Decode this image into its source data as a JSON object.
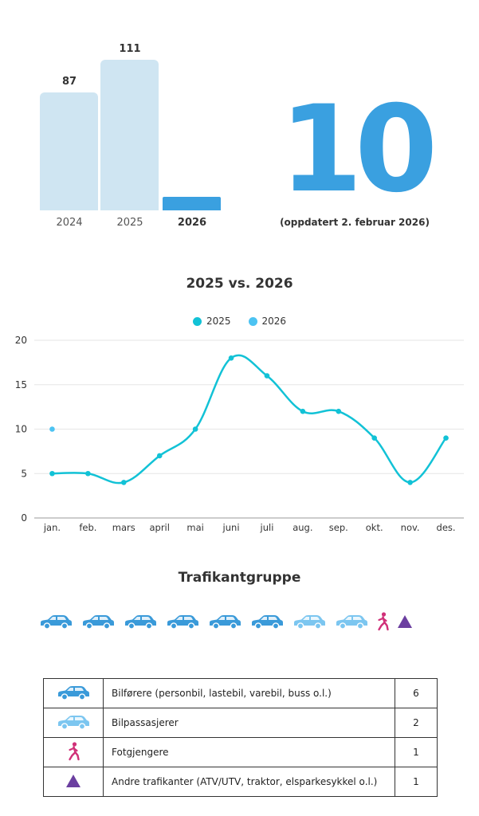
{
  "summary": {
    "bars": [
      {
        "label": "2024",
        "value": 87,
        "color": "#cfe5f2"
      },
      {
        "label": "2025",
        "value": 111,
        "color": "#cfe5f2"
      },
      {
        "label": "2026",
        "value": 10,
        "color": "#3aa0e0"
      }
    ],
    "current_count": "10",
    "updated_text": "(oppdatert 2. februar 2026)"
  },
  "chart_data": {
    "type": "line",
    "title": "2025 vs. 2026",
    "categories": [
      "jan.",
      "feb.",
      "mars",
      "april",
      "mai",
      "juni",
      "juli",
      "aug.",
      "sep.",
      "okt.",
      "nov.",
      "des."
    ],
    "series": [
      {
        "name": "2025",
        "color": "#12c2d6",
        "values": [
          5,
          5,
          4,
          7,
          10,
          18,
          16,
          12,
          12,
          9,
          4,
          9
        ]
      },
      {
        "name": "2026",
        "color": "#4cc3f2",
        "values": [
          10,
          null,
          null,
          null,
          null,
          null,
          null,
          null,
          null,
          null,
          null,
          null
        ]
      }
    ],
    "ylim": [
      0,
      20
    ],
    "yticks": [
      0,
      5,
      10,
      15,
      20
    ],
    "grid": true,
    "legend_position": "top-center"
  },
  "groups_title": "Trafikantgruppe",
  "icon_row": [
    "car-driver",
    "car-driver",
    "car-driver",
    "car-driver",
    "car-driver",
    "car-driver",
    "car-passenger",
    "car-passenger",
    "pedestrian",
    "triangle"
  ],
  "table": {
    "rows": [
      {
        "icon": "car-driver",
        "label": "Bilførere (personbil, lastebil, varebil, buss o.l.)",
        "count": "6"
      },
      {
        "icon": "car-passenger",
        "label": "Bilpassasjerer",
        "count": "2"
      },
      {
        "icon": "pedestrian",
        "label": "Fotgjengere",
        "count": "1"
      },
      {
        "icon": "triangle",
        "label": "Andre trafikanter (ATV/UTV, traktor, elsparkesykkel o.l.)",
        "count": "1"
      }
    ]
  },
  "colors": {
    "driver": "#3a9ad9",
    "passenger": "#7cc6f0",
    "pedestrian": "#d03078",
    "other": "#6b3fa0"
  }
}
